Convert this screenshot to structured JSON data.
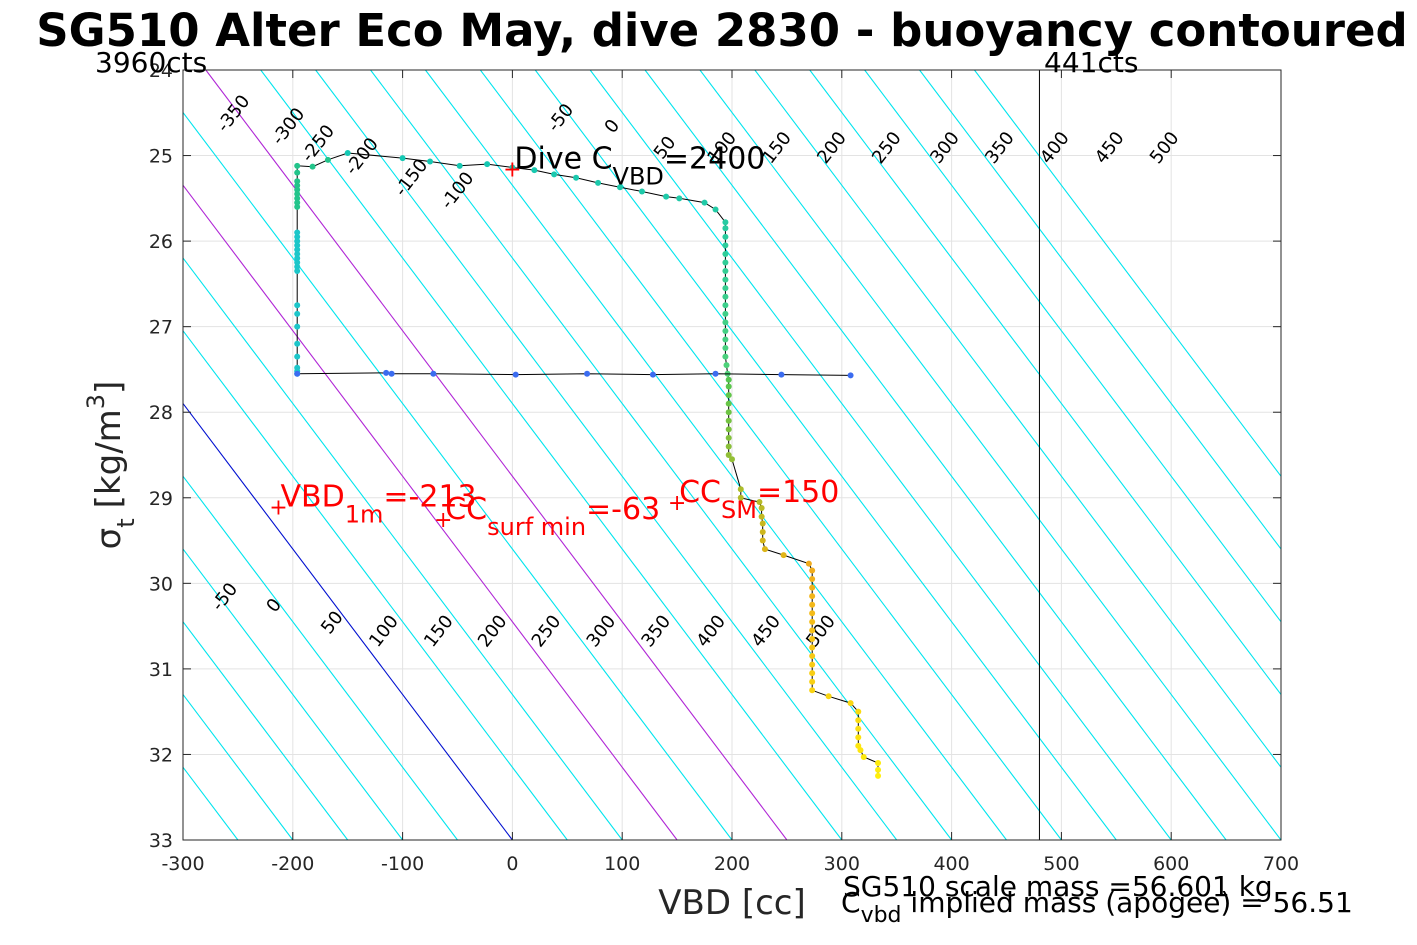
{
  "chart_data": {
    "type": "scatter",
    "title": "SG510 Alter Eco May, dive 2830 - buoyancy contoured",
    "xlabel": "VBD [cc]",
    "ylabel_main": "σ",
    "ylabel_sub": "t",
    "ylabel_units": "[kg/m",
    "ylabel_sup": "3",
    "ylabel_close": "]",
    "xlim": [
      -300,
      700
    ],
    "ylim": [
      24,
      33
    ],
    "y_reversed": true,
    "grid": true,
    "x_ticks": [
      -300,
      -200,
      -100,
      0,
      100,
      200,
      300,
      400,
      500,
      600,
      700
    ],
    "y_ticks": [
      24,
      25,
      26,
      27,
      28,
      29,
      30,
      31,
      32,
      33
    ],
    "top_left_label": "3960cts",
    "top_right_label": "441cts",
    "vline_x": 480,
    "vline_color": "#000000",
    "line_colors": {
      "cyan": "#00e5ee",
      "magenta": "#b026d6",
      "blue": "#0010d0",
      "path": "#000000",
      "marker": "#ff0000"
    },
    "contour_offsets": [
      -350,
      -300,
      -250,
      -200,
      -150,
      -100,
      -50,
      0,
      50,
      100,
      150,
      200,
      250,
      300,
      350,
      400,
      450,
      500,
      550,
      600,
      650,
      700,
      750,
      800,
      850,
      900,
      950
    ],
    "magenta_offsets": [
      150,
      250
    ],
    "blue_offset": 0,
    "contour_x_per_sigma": 58.8,
    "upper_labels": [
      {
        "text": "-350",
        "x": -250,
        "y": 24.55
      },
      {
        "text": "-300",
        "x": -200,
        "y": 24.7
      },
      {
        "text": "-250",
        "x": -173,
        "y": 24.9
      },
      {
        "text": "-200",
        "x": -133,
        "y": 25.05
      },
      {
        "text": "-150",
        "x": -88,
        "y": 25.3
      },
      {
        "text": "-100",
        "x": -46,
        "y": 25.45
      },
      {
        "text": "-50",
        "x": 48,
        "y": 24.6
      },
      {
        "text": "0",
        "x": 95,
        "y": 24.7
      },
      {
        "text": "50",
        "x": 143,
        "y": 24.95
      },
      {
        "text": "100",
        "x": 195,
        "y": 24.95
      },
      {
        "text": "150",
        "x": 245,
        "y": 24.95
      },
      {
        "text": "200",
        "x": 295,
        "y": 24.95
      },
      {
        "text": "250",
        "x": 345,
        "y": 24.95
      },
      {
        "text": "300",
        "x": 398,
        "y": 24.95
      },
      {
        "text": "350",
        "x": 448,
        "y": 24.95
      },
      {
        "text": "400",
        "x": 498,
        "y": 24.95
      },
      {
        "text": "450",
        "x": 548,
        "y": 24.95
      },
      {
        "text": "500",
        "x": 598,
        "y": 24.95
      }
    ],
    "lower_labels": [
      {
        "text": "-50",
        "x": -258,
        "y": 30.2
      },
      {
        "text": "0",
        "x": -213,
        "y": 30.3
      },
      {
        "text": "50",
        "x": -160,
        "y": 30.5
      },
      {
        "text": "100",
        "x": -113,
        "y": 30.6
      },
      {
        "text": "150",
        "x": -63,
        "y": 30.6
      },
      {
        "text": "200",
        "x": -14,
        "y": 30.6
      },
      {
        "text": "250",
        "x": 35,
        "y": 30.6
      },
      {
        "text": "300",
        "x": 85,
        "y": 30.6
      },
      {
        "text": "350",
        "x": 135,
        "y": 30.6
      },
      {
        "text": "400",
        "x": 185,
        "y": 30.6
      },
      {
        "text": "450",
        "x": 235,
        "y": 30.6
      },
      {
        "text": "500",
        "x": 285,
        "y": 30.6
      }
    ],
    "annotations": [
      {
        "id": "dive-cvbd",
        "main": "Dive C",
        "sub": "VBD",
        "tail": "=2400",
        "color": "#000000",
        "x": 0,
        "y": 25.15,
        "marker": true
      },
      {
        "id": "vbd-1m",
        "main": "VBD",
        "sub": "1m",
        "tail": "=-213",
        "color": "#ff0000",
        "x": -213,
        "y": 29.1,
        "marker": true
      },
      {
        "id": "cc-surf-min",
        "main": "CC",
        "sub": "surf min",
        "tail": "=-63",
        "color": "#ff0000",
        "x": -63,
        "y": 29.25,
        "marker": true
      },
      {
        "id": "cc-sm",
        "main": "CC",
        "sub": "SM",
        "tail": "=150",
        "color": "#ff0000",
        "x": 150,
        "y": 29.05,
        "marker": true
      }
    ],
    "footer_mass": "SG510 scale mass =56.601 kg",
    "footer_implied_main": "C",
    "footer_implied_sub": "vbd",
    "footer_implied_tail": " implied mass (apogee) = 56.51",
    "series": [
      {
        "points": [
          [
            -196,
            27.55
          ],
          [
            -196,
            27.52
          ],
          [
            -196,
            27.48
          ],
          [
            -196,
            27.35
          ],
          [
            -196,
            27.2
          ],
          [
            -196,
            27.0
          ],
          [
            -196,
            26.85
          ],
          [
            -196,
            26.75
          ],
          [
            -196,
            26.35
          ],
          [
            -196,
            26.3
          ],
          [
            -196,
            26.25
          ],
          [
            -196,
            26.2
          ],
          [
            -196,
            26.15
          ],
          [
            -196,
            26.1
          ],
          [
            -196,
            26.05
          ],
          [
            -196,
            26.0
          ],
          [
            -196,
            25.95
          ],
          [
            -196,
            25.9
          ],
          [
            -196,
            25.6
          ],
          [
            -196,
            25.55
          ],
          [
            -196,
            25.5
          ],
          [
            -196,
            25.45
          ],
          [
            -196,
            25.4
          ],
          [
            -196,
            25.35
          ],
          [
            -196,
            25.3
          ],
          [
            -196,
            25.2
          ],
          [
            -196,
            25.12
          ],
          [
            -182,
            25.13
          ],
          [
            -168,
            25.05
          ],
          [
            -150,
            24.97
          ],
          [
            -100,
            25.03
          ],
          [
            -75,
            25.07
          ],
          [
            -48,
            25.12
          ],
          [
            -23,
            25.1
          ],
          [
            0,
            25.14
          ],
          [
            20,
            25.17
          ],
          [
            38,
            25.22
          ],
          [
            58,
            25.26
          ],
          [
            78,
            25.32
          ],
          [
            98,
            25.37
          ],
          [
            118,
            25.42
          ],
          [
            140,
            25.48
          ],
          [
            152,
            25.5
          ],
          [
            175,
            25.55
          ],
          [
            185,
            25.63
          ],
          [
            194,
            25.78
          ],
          [
            194,
            25.85
          ],
          [
            194,
            25.95
          ],
          [
            194,
            26.05
          ],
          [
            194,
            26.15
          ],
          [
            194,
            26.25
          ],
          [
            194,
            26.35
          ],
          [
            194,
            26.45
          ],
          [
            194,
            26.55
          ],
          [
            194,
            26.65
          ],
          [
            194,
            26.75
          ],
          [
            194,
            26.85
          ],
          [
            194,
            26.95
          ],
          [
            194,
            27.05
          ],
          [
            194,
            27.15
          ],
          [
            194,
            27.25
          ],
          [
            194,
            27.35
          ],
          [
            195,
            27.45
          ],
          [
            196,
            27.55
          ],
          [
            197,
            27.62
          ],
          [
            197,
            27.7
          ],
          [
            197,
            27.8
          ],
          [
            197,
            27.9
          ],
          [
            197,
            28.0
          ],
          [
            197,
            28.1
          ],
          [
            197,
            28.2
          ],
          [
            197,
            28.3
          ],
          [
            197,
            28.4
          ],
          [
            197,
            28.5
          ],
          [
            200,
            28.55
          ],
          [
            208,
            28.9
          ],
          [
            208,
            29.0
          ],
          [
            225,
            29.05
          ],
          [
            227,
            29.12
          ],
          [
            227,
            29.22
          ],
          [
            228,
            29.3
          ],
          [
            228,
            29.4
          ],
          [
            228,
            29.5
          ],
          [
            230,
            29.6
          ],
          [
            247,
            29.67
          ],
          [
            270,
            29.77
          ],
          [
            273,
            29.85
          ],
          [
            273,
            29.95
          ],
          [
            273,
            30.05
          ],
          [
            273,
            30.15
          ],
          [
            273,
            30.25
          ],
          [
            273,
            30.35
          ],
          [
            273,
            30.45
          ],
          [
            273,
            30.55
          ],
          [
            273,
            30.65
          ],
          [
            273,
            30.75
          ],
          [
            273,
            30.85
          ],
          [
            273,
            30.95
          ],
          [
            273,
            31.05
          ],
          [
            273,
            31.15
          ],
          [
            273,
            31.25
          ],
          [
            288,
            31.32
          ],
          [
            308,
            31.4
          ],
          [
            315,
            31.5
          ],
          [
            315,
            31.6
          ],
          [
            315,
            31.7
          ],
          [
            315,
            31.8
          ],
          [
            315,
            31.9
          ],
          [
            317,
            31.95
          ],
          [
            320,
            32.03
          ],
          [
            333,
            32.1
          ],
          [
            333,
            32.18
          ],
          [
            333,
            32.25
          ]
        ]
      },
      {
        "points": [
          [
            -196,
            27.55
          ],
          [
            -115,
            27.54
          ],
          [
            -110,
            27.55
          ],
          [
            -72,
            27.55
          ],
          [
            3,
            27.56
          ],
          [
            68,
            27.55
          ],
          [
            128,
            27.56
          ],
          [
            185,
            27.55
          ],
          [
            245,
            27.56
          ],
          [
            308,
            27.57
          ]
        ]
      }
    ]
  }
}
